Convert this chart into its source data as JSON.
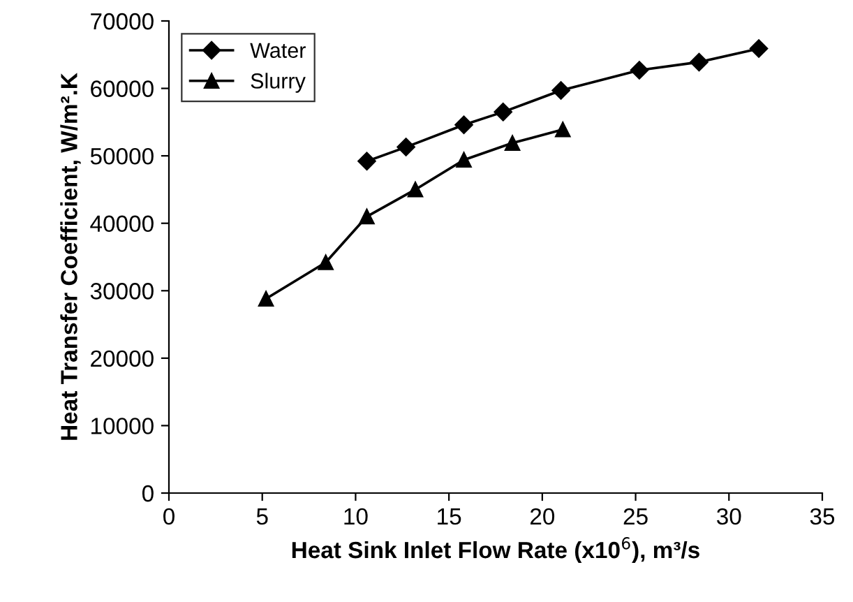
{
  "chart_data": {
    "type": "line",
    "xlabel": "Heat Sink Inlet Flow Rate (x10$^{6}$), m³/s",
    "ylabel": "Heat Transfer Coefficient, W/m².K",
    "xlim": [
      0,
      35
    ],
    "xticks": [
      0,
      5,
      10,
      15,
      20,
      25,
      30,
      35
    ],
    "ylim": [
      0,
      70000
    ],
    "yticks": [
      0,
      10000,
      20000,
      30000,
      40000,
      50000,
      60000,
      70000
    ],
    "grid": false,
    "legend": "top left",
    "line_style": "solid",
    "series": [
      {
        "name": "Water",
        "color": "#000000",
        "marker": "diamond",
        "x": [
          10.6,
          12.7,
          15.8,
          17.9,
          21.0,
          25.2,
          28.4,
          31.6
        ],
        "values": [
          49200,
          51300,
          54600,
          56500,
          59700,
          62700,
          63900,
          65900
        ]
      },
      {
        "name": "Slurry",
        "color": "#000000",
        "marker": "triangle",
        "x": [
          5.2,
          8.4,
          10.6,
          13.2,
          15.8,
          18.4,
          21.1
        ],
        "values": [
          28800,
          34200,
          41000,
          45000,
          49400,
          51900,
          53900
        ]
      }
    ]
  }
}
